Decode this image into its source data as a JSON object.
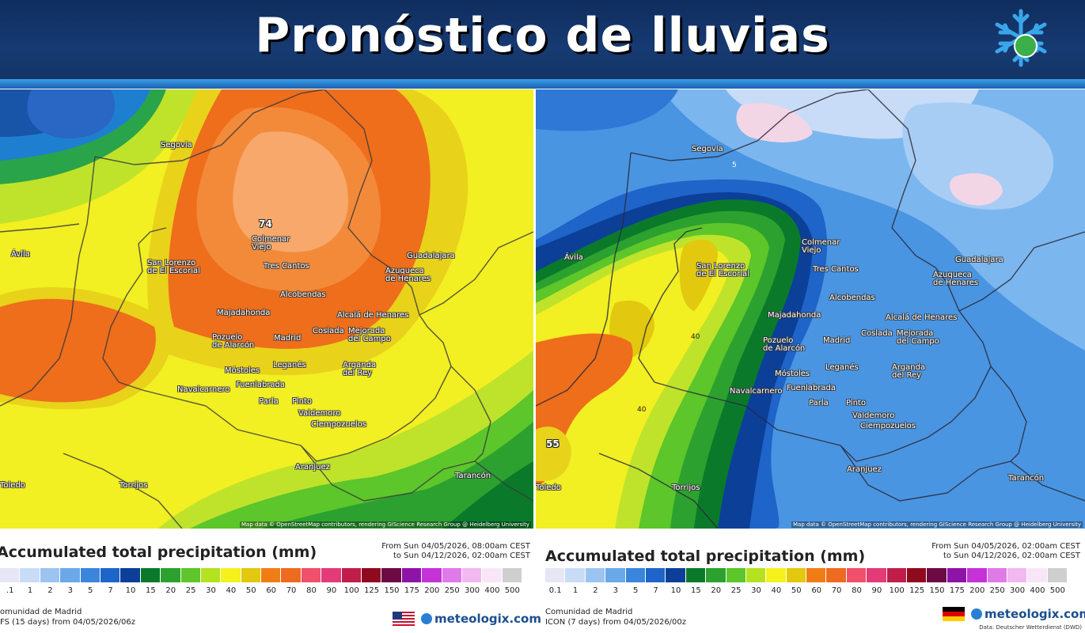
{
  "banner": {
    "title": "Pronóstico de lluvias"
  },
  "colors": {
    "banner": "#163a72",
    "accent": "#3aa0e8"
  },
  "left_map": {
    "peak_label": "74",
    "attribution": "Map data © OpenStreetMap contributors, rendering GIScience Research Group @ Heidelberg University",
    "places": [
      "Segovia",
      "Ávila",
      "San Lorenzo\nde El Escorial",
      "Colmenar\nViejo",
      "Tres Cantos",
      "Guadalajara",
      "Azuqueca\nde Henares",
      "Alcobendas",
      "Majadahonda",
      "Alcalá de Henares",
      "Coslada",
      "Mejorada\ndel Campo",
      "Pozuelo\nde Alarcón",
      "Madrid",
      "Leganés",
      "Arganda\ndel Rey",
      "Móstoles",
      "Fuenlabrada",
      "Navalcarnero",
      "Parla",
      "Pinto",
      "Valdemoro",
      "Ciempozuelos",
      "Aranjuez",
      "Torrijos",
      "Tarancón",
      "Toledo"
    ]
  },
  "right_map": {
    "peak_label": "55",
    "mid_label": "40",
    "mid_label2": "40",
    "seg_label": "5",
    "attribution": "Map data © OpenStreetMap contributors, rendering GIScience Research Group @ Heidelberg University",
    "places": [
      "Segovia",
      "Ávila",
      "San Lorenzo\nde El Escorial",
      "Colmenar\nViejo",
      "Tres Cantos",
      "Guadalajara",
      "Azuqueca\nde Henares",
      "Alcobendas",
      "Majadahonda",
      "Alcalá de Henares",
      "Coslada",
      "Mejorada\ndel Campo",
      "Pozuelo\nde Alarcón",
      "Madrid",
      "Leganés",
      "Arganda\ndel Rey",
      "Móstoles",
      "Fuenlabrada",
      "Navalcarnero",
      "Parla",
      "Pinto",
      "Valdemoro",
      "Ciempozuelos",
      "Aranjuez",
      "Torrijos",
      "Tarancón",
      "Toledo"
    ]
  },
  "left_legend": {
    "title": "Accumulated total precipitation (mm)",
    "from": "From Sun 04/05/2026, 08:00am CEST",
    "to": "to Sun 04/12/2026, 02:00am CEST",
    "region": "omunidad de Madrid",
    "model": "FS (15 days) from 04/05/2026/06z",
    "brand": "meteologix.com"
  },
  "right_legend": {
    "title": "Accumulated total precipitation (mm)",
    "from": "From Sun 04/05/2026, 02:00am CEST",
    "to": "to Sun 04/12/2026, 02:00am CEST",
    "region": "Comunidad de Madrid",
    "model": "ICON (7 days) from 04/05/2026/00z",
    "brand": "meteologix.com",
    "credit": "Data: Deutscher Wetterdienst (DWD)"
  },
  "scale": {
    "ticks": [
      "0.1",
      "1",
      "2",
      "3",
      "5",
      "7",
      "10",
      "15",
      "20",
      "25",
      "30",
      "40",
      "50",
      "60",
      "70",
      "80",
      "90",
      "100",
      "125",
      "150",
      "175",
      "200",
      "250",
      "300",
      "400",
      "500"
    ],
    "left_ticks": [
      ".1",
      "1",
      "2",
      "3",
      "5",
      "7",
      "10",
      "15",
      "20",
      "25",
      "30",
      "40",
      "50",
      "60",
      "70",
      "80",
      "90",
      "100",
      "125",
      "150",
      "175",
      "200",
      "250",
      "300",
      "400",
      "500"
    ],
    "colors": [
      "#e6e6f5",
      "#c8dcf8",
      "#9cc4f0",
      "#6aa8ea",
      "#3a86dc",
      "#1f64c8",
      "#0c3f98",
      "#0a7a2a",
      "#2ca12f",
      "#5cc62a",
      "#b5e21f",
      "#f4f21a",
      "#e2c80e",
      "#f07d14",
      "#ee6a1e",
      "#f0506a",
      "#e43a78",
      "#c01e4a",
      "#900a1e",
      "#6c0a44",
      "#8e14a8",
      "#c432d8",
      "#e07ae8",
      "#f2b8f0",
      "#f8e6f8",
      "#cfcfcf"
    ]
  }
}
